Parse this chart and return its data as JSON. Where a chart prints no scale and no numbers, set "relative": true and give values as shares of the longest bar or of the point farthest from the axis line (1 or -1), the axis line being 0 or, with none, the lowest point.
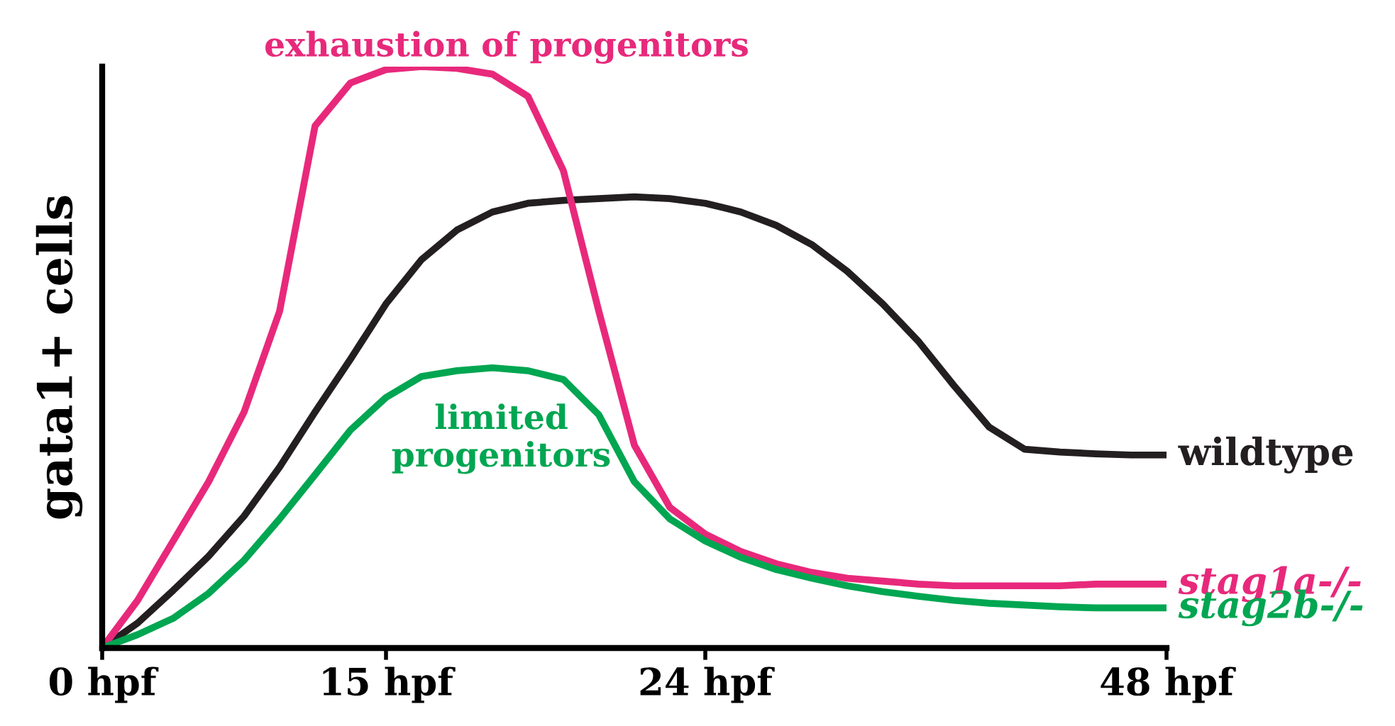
{
  "chart_data": {
    "type": "line",
    "relative": true,
    "ylabel": "gata1+ cells",
    "categories": [
      "0 hpf",
      null,
      null,
      null,
      null,
      null,
      null,
      null,
      "15 hpf",
      null,
      null,
      null,
      null,
      null,
      null,
      null,
      null,
      "24 hpf",
      null,
      null,
      null,
      null,
      null,
      null,
      null,
      null,
      null,
      null,
      null,
      null,
      "48 hpf"
    ],
    "grid": false,
    "legend": false,
    "marker": "none",
    "line_style": "solid",
    "annotations": [
      "exhaustion of progenitors",
      "limited\nprogenitors"
    ],
    "series": [
      {
        "name": "wildtype",
        "color": "#231f20",
        "values": [
          0,
          0.043,
          0.099,
          0.158,
          0.227,
          0.311,
          0.406,
          0.497,
          0.592,
          0.668,
          0.719,
          0.75,
          0.765,
          0.77,
          0.773,
          0.776,
          0.773,
          0.765,
          0.75,
          0.727,
          0.694,
          0.648,
          0.592,
          0.528,
          0.452,
          0.38,
          0.342,
          0.337,
          0.334,
          0.332,
          0.332
        ]
      },
      {
        "name": "stag1a-/-",
        "color": "#e8297b",
        "values": [
          0,
          0.082,
          0.184,
          0.286,
          0.406,
          0.579,
          0.898,
          0.972,
          0.995,
          1,
          0.997,
          0.987,
          0.949,
          0.821,
          0.579,
          0.349,
          0.242,
          0.196,
          0.166,
          0.145,
          0.13,
          0.12,
          0.115,
          0.11,
          0.107,
          0.107,
          0.107,
          0.107,
          0.11,
          0.11,
          0.11
        ]
      },
      {
        "name": "stag2b-/-",
        "color": "#00a651",
        "values": [
          0,
          0.023,
          0.051,
          0.094,
          0.151,
          0.222,
          0.298,
          0.375,
          0.431,
          0.467,
          0.477,
          0.482,
          0.477,
          0.462,
          0.401,
          0.286,
          0.222,
          0.184,
          0.156,
          0.135,
          0.12,
          0.107,
          0.097,
          0.089,
          0.082,
          0.077,
          0.074,
          0.071,
          0.069,
          0.069,
          0.069
        ]
      }
    ]
  }
}
